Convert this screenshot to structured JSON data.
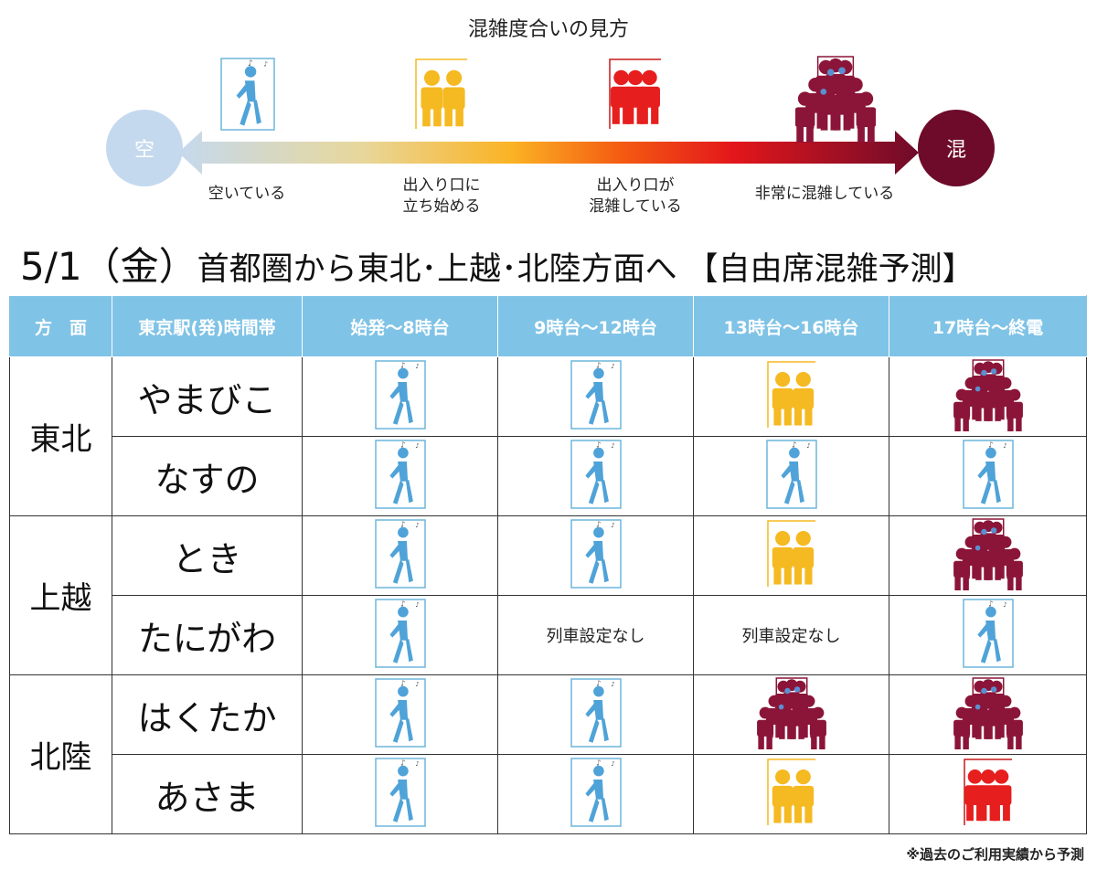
{
  "legend": {
    "title": "混雑度合いの見方",
    "empty_circle": "空",
    "crowded_circle": "混",
    "levels": [
      {
        "icon": "walking-person-icon",
        "label_lines": [
          "空いている"
        ],
        "color": "#4fa3d8"
      },
      {
        "icon": "two-people-icon",
        "label_lines": [
          "出入り口に",
          "立ち始める"
        ],
        "color": "#f5b921"
      },
      {
        "icon": "three-people-icon",
        "label_lines": [
          "出入り口が",
          "混雑している"
        ],
        "color": "#e61e1e"
      },
      {
        "icon": "crowd-icon",
        "label_lines": [
          "非常に混雑している"
        ],
        "color": "#8b1538"
      }
    ]
  },
  "title": {
    "date": "5/1",
    "day": "（金）",
    "text": "首都圏から東北･上越･北陸方面へ",
    "tag": "【自由席混雑予測】"
  },
  "table": {
    "headers": [
      "方　面",
      "東京駅(発)時間帯",
      "始発～8時台",
      "9時台～12時台",
      "13時台～16時台",
      "17時台～終電"
    ],
    "groups": [
      {
        "direction": "東北",
        "rows": [
          {
            "train": "やまびこ",
            "levels": [
              1,
              1,
              2,
              4
            ]
          },
          {
            "train": "なすの",
            "levels": [
              1,
              1,
              1,
              1
            ]
          }
        ]
      },
      {
        "direction": "上越",
        "rows": [
          {
            "train": "とき",
            "levels": [
              1,
              1,
              2,
              4
            ]
          },
          {
            "train": "たにがわ",
            "levels": [
              1,
              "列車設定なし",
              "列車設定なし",
              1
            ]
          }
        ]
      },
      {
        "direction": "北陸",
        "rows": [
          {
            "train": "はくたか",
            "levels": [
              1,
              1,
              4,
              4
            ]
          },
          {
            "train": "あさま",
            "levels": [
              1,
              1,
              2,
              3
            ]
          }
        ]
      }
    ]
  },
  "footnote": "※過去のご利用実績から予測"
}
